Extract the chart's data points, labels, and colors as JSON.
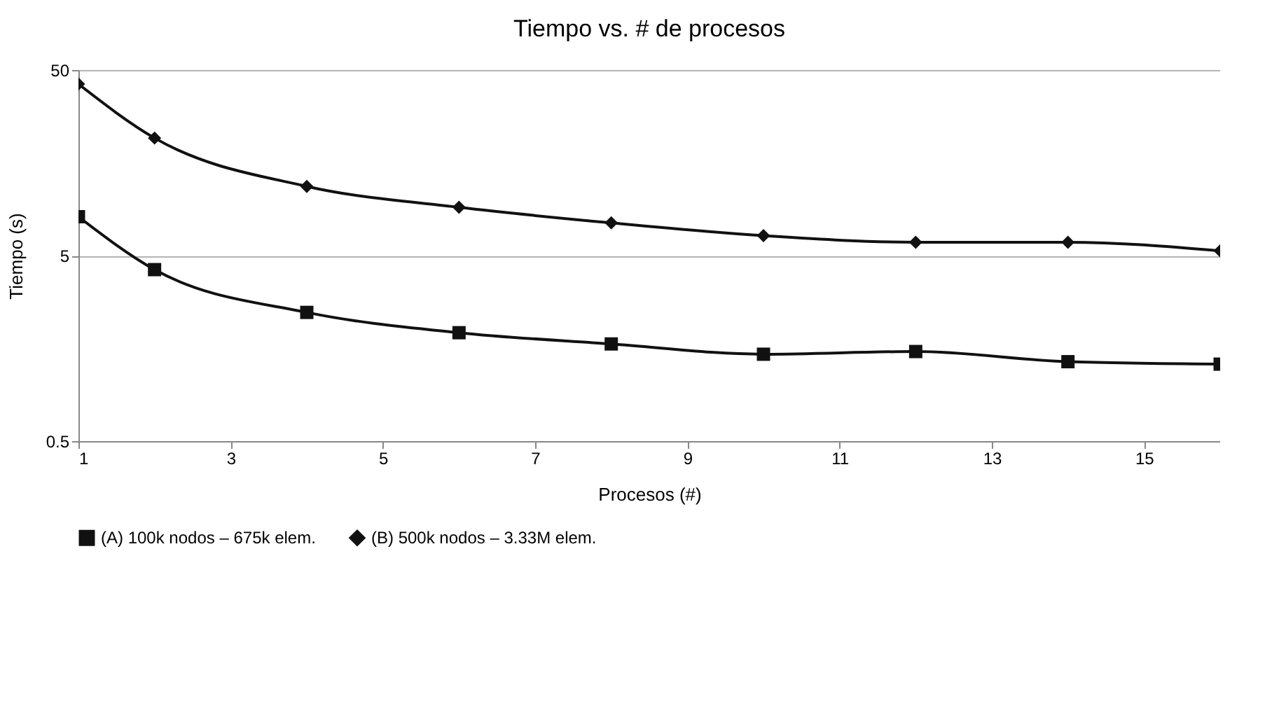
{
  "chart_data": {
    "type": "line",
    "title": "Tiempo vs. # de procesos",
    "xlabel": "Procesos (#)",
    "ylabel": "Tiempo (s)",
    "x": [
      1,
      2,
      4,
      6,
      8,
      10,
      12,
      14,
      16
    ],
    "series": [
      {
        "name": "(A) 100k nodos – 675k elem.",
        "color": "#111111",
        "marker": "square",
        "values": [
          8.1,
          4.2,
          2.47,
          1.92,
          1.67,
          1.47,
          1.52,
          1.34,
          1.3
        ]
      },
      {
        "name": "(B) 500k nodos – 3.33M elem.",
        "color": "#111111",
        "marker": "diamond",
        "values": [
          42,
          21.5,
          11.8,
          9.1,
          7.5,
          6.4,
          5.9,
          5.9,
          5.3
        ]
      }
    ],
    "log": "y",
    "xlim": [
      1,
      16
    ],
    "xticks": [
      1,
      3,
      5,
      7,
      9,
      11,
      13,
      15
    ],
    "ylim": [
      0.5,
      50
    ],
    "yticks": [
      0.5,
      5,
      50
    ],
    "grid": "y",
    "legend": "bottom",
    "line_style": "solid"
  }
}
